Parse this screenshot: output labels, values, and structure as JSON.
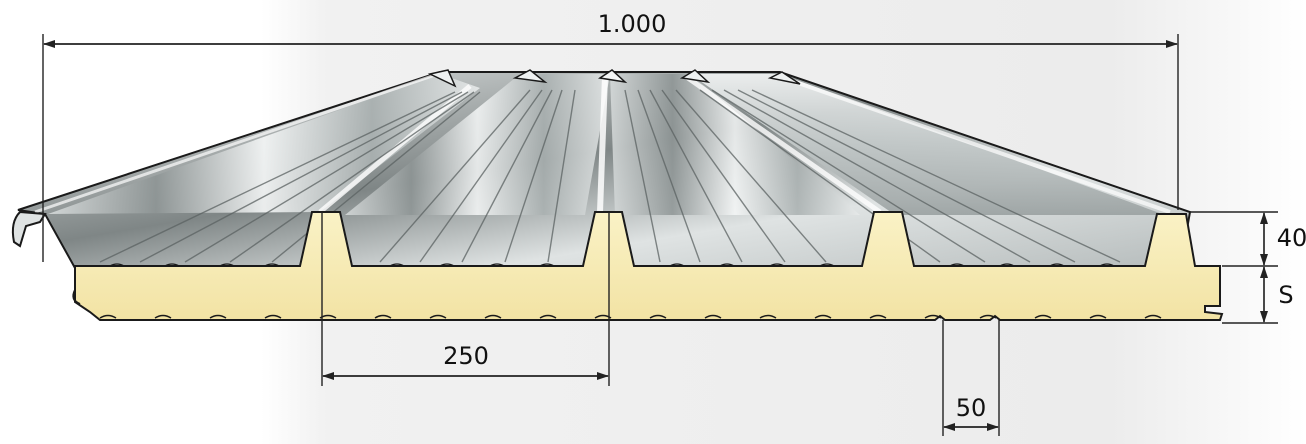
{
  "dimensions": {
    "total_width": "1.000",
    "rib_spacing": "250",
    "micro_rib_pitch": "50",
    "rib_height": "40",
    "core_thickness": "S"
  },
  "colors": {
    "metal_light": "#f4f6f6",
    "metal_mid": "#b9c0c0",
    "metal_dark": "#6e7575",
    "foam": "#f7ecb8",
    "foam_dark": "#e9d98c",
    "outline": "#1a1a1a",
    "dimension_line": "#222222",
    "background_panel": "#efefef"
  }
}
